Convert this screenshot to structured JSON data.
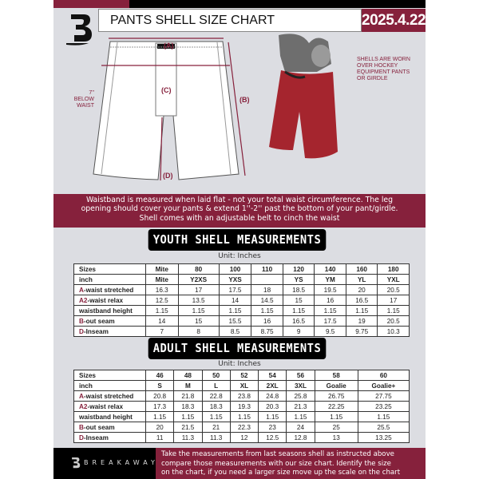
{
  "header": {
    "title": "PANTS SHELL SIZE CHART",
    "date": "2025.4.22"
  },
  "diagram": {
    "labels": {
      "a": "(A)",
      "b": "(B)",
      "c": "(C)",
      "d": "(D)"
    },
    "c_note": [
      "7'' BELOW",
      "WAIST"
    ],
    "photo_note": [
      "SHELLS ARE WORN",
      "OVER HOCKEY",
      "EQUIPMENT PANTS",
      "OR GIRDLE"
    ],
    "shell_color": "#a5252e"
  },
  "info_band": [
    "Waistband is measured when laid flat - not your total waist circumference. The leg",
    "opening should cover your pants & extend 1''-2'' past the bottom of your pant/girdle.",
    "Shell comes with an adjustable belt to cinch the waist"
  ],
  "youth": {
    "title": "YOUTH SHELL MEASUREMENTS",
    "unit": "Unit: Inches",
    "rows": [
      {
        "p": "",
        "l": "Sizes",
        "v": [
          "Mite",
          "80",
          "100",
          "110",
          "120",
          "140",
          "160",
          "180"
        ]
      },
      {
        "p": "",
        "l": "inch",
        "v": [
          "Mite",
          "Y2XS",
          "YXS",
          "",
          "YS",
          "YM",
          "YL",
          "YXL"
        ]
      },
      {
        "p": "A",
        "l": "-waist stretched",
        "v": [
          "16.3",
          "17",
          "17.5",
          "18",
          "18.5",
          "19.5",
          "20",
          "20.5"
        ]
      },
      {
        "p": "A2",
        "l": "-waist relax",
        "v": [
          "12.5",
          "13.5",
          "14",
          "14.5",
          "15",
          "16",
          "16.5",
          "17"
        ]
      },
      {
        "p": "",
        "l": "waistband height",
        "v": [
          "1.15",
          "1.15",
          "1.15",
          "1.15",
          "1.15",
          "1.15",
          "1.15",
          "1.15"
        ]
      },
      {
        "p": "B",
        "l": "-out seam",
        "v": [
          "14",
          "15",
          "15.5",
          "16",
          "16.5",
          "17.5",
          "19",
          "20.5"
        ]
      },
      {
        "p": "D",
        "l": "-Inseam",
        "v": [
          "7",
          "8",
          "8.5",
          "8.75",
          "9",
          "9.5",
          "9.75",
          "10.3"
        ]
      }
    ]
  },
  "adult": {
    "title": "ADULT SHELL MEASUREMENTS",
    "unit": "Unit: Inches",
    "rows": [
      {
        "p": "",
        "l": "Sizes",
        "v": [
          "46",
          "48",
          "50",
          "52",
          "54",
          "56",
          "58",
          "60"
        ]
      },
      {
        "p": "",
        "l": "inch",
        "v": [
          "S",
          "M",
          "L",
          "XL",
          "2XL",
          "3XL",
          "Goalie",
          "Goalie+"
        ]
      },
      {
        "p": "A",
        "l": "-waist stretched",
        "v": [
          "20.8",
          "21.8",
          "22.8",
          "23.8",
          "24.8",
          "25.8",
          "26.75",
          "27.75"
        ]
      },
      {
        "p": "A2",
        "l": "-waist relax",
        "v": [
          "17.3",
          "18.3",
          "18.3",
          "19.3",
          "20.3",
          "21.3",
          "22.25",
          "23.25"
        ]
      },
      {
        "p": "",
        "l": "waistband height",
        "v": [
          "1.15",
          "1.15",
          "1.15",
          "1.15",
          "1.15",
          "1.15",
          "1.15",
          "1.15"
        ]
      },
      {
        "p": "B",
        "l": "-out seam",
        "v": [
          "20",
          "21.5",
          "21",
          "22.3",
          "23",
          "24",
          "25",
          "25.5"
        ]
      },
      {
        "p": "D",
        "l": "-Inseam",
        "v": [
          "11",
          "11.3",
          "11.3",
          "12",
          "12.5",
          "12.8",
          "13",
          "13.25"
        ]
      }
    ]
  },
  "footer": {
    "brand": "BREAKAWAY",
    "lines": [
      "Take the measurements from last seasons shell as instructed above",
      "compare those measurements  with our size chart. Identify the size",
      "on the chart, if you need a larger size move up the scale on the chart"
    ]
  },
  "colors": {
    "accent": "#86213c",
    "background": "#dcdde2"
  }
}
